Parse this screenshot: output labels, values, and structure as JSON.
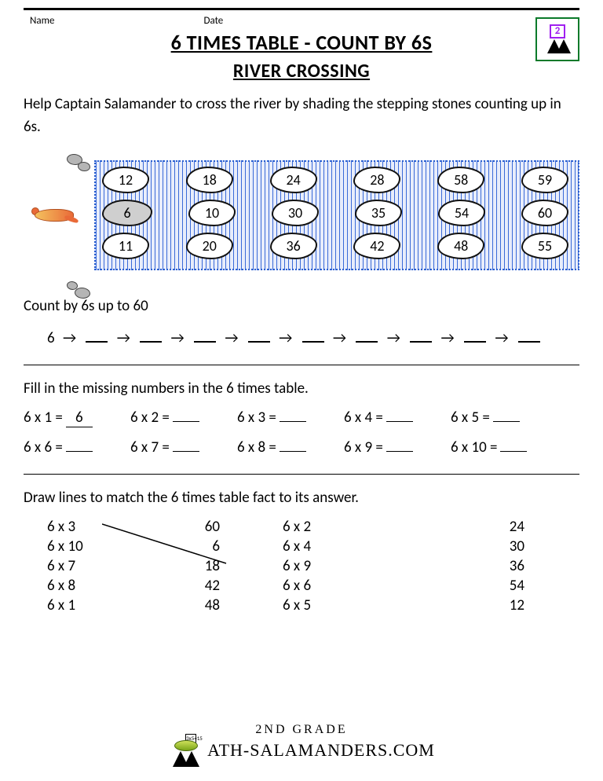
{
  "header": {
    "name_label": "Name",
    "date_label": "Date",
    "logo_number": "2"
  },
  "titles": {
    "main": "6 TIMES TABLE - COUNT BY 6S",
    "sub": "RIVER CROSSING"
  },
  "intro": "Help Captain Salamander to cross the river by shading the stepping stones counting up in 6s.",
  "river": {
    "rows": [
      [
        "12",
        "18",
        "24",
        "28",
        "58",
        "59"
      ],
      [
        "6",
        "10",
        "30",
        "35",
        "54",
        "60"
      ],
      [
        "11",
        "20",
        "36",
        "42",
        "48",
        "55"
      ]
    ],
    "filled": {
      "row": 1,
      "col": 0
    }
  },
  "count": {
    "heading": "Count by 6s up to 60",
    "start": "6",
    "arrow": "→",
    "blanks": 9
  },
  "fill": {
    "heading": "Fill in the missing numbers in the 6 times table.",
    "rows": [
      [
        {
          "q": "6 x 1 =",
          "a": "6"
        },
        {
          "q": "6 x 2 =",
          "a": ""
        },
        {
          "q": "6 x 3 =",
          "a": ""
        },
        {
          "q": "6 x 4 =",
          "a": ""
        },
        {
          "q": "6 x 5 =",
          "a": ""
        }
      ],
      [
        {
          "q": "6 x 6 =",
          "a": ""
        },
        {
          "q": "6 x 7 =",
          "a": ""
        },
        {
          "q": "6 x 8 =",
          "a": ""
        },
        {
          "q": "6 x 9 =",
          "a": ""
        },
        {
          "q": "6 x 10 =",
          "a": ""
        }
      ]
    ]
  },
  "match": {
    "heading": "Draw lines to match the 6 times table fact to its answer.",
    "left_q": [
      "6 x 3",
      "6 x 10",
      "6 x 7",
      "6 x 8",
      "6 x 1"
    ],
    "left_a": [
      "60",
      "6",
      "18",
      "42",
      "48"
    ],
    "right_q": [
      "6 x 2",
      "6 x 4",
      "6 x 9",
      "6 x 6",
      "6 x 5"
    ],
    "right_a": [
      "24",
      "30",
      "36",
      "54",
      "12"
    ],
    "drawn_line_from": "6 x 3",
    "drawn_line_to": "18"
  },
  "footer": {
    "grade": "2ND GRADE",
    "site": "ATH-SALAMANDERS.COM",
    "card": "3x5=15"
  },
  "colors": {
    "river_dash": "#3a6ad8",
    "river_bg": "#e8edfb",
    "logo_border": "#0a7a2a",
    "logo_num": "#a020f0",
    "rock": "#b5b5b5"
  }
}
